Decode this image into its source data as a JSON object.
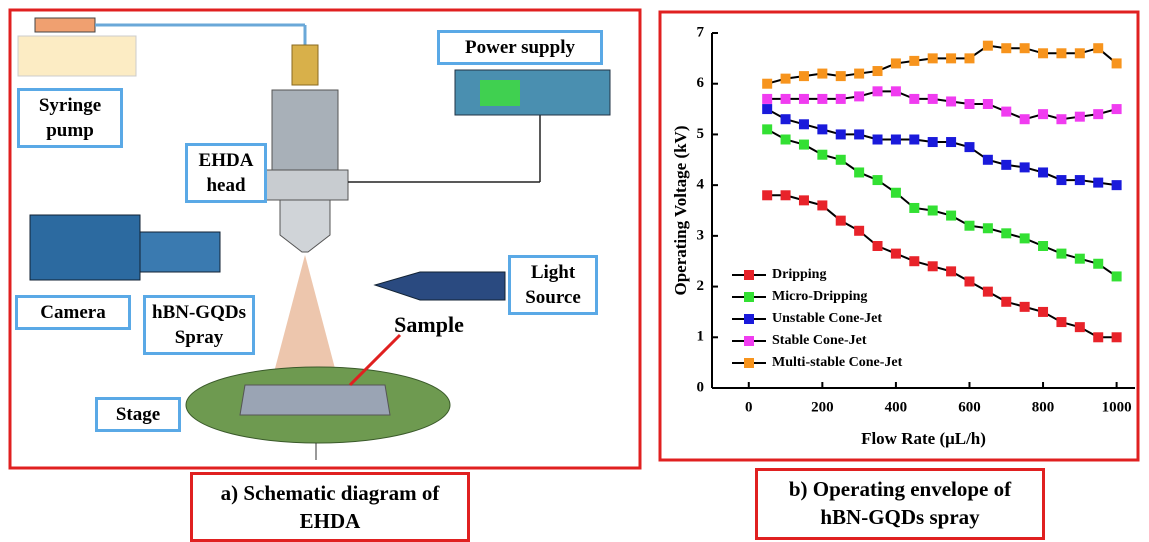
{
  "diagram": {
    "labels": {
      "syringe_pump": "Syringe pump",
      "ehda_head": "EHDA head",
      "power_supply": "Power supply",
      "camera": "Camera",
      "spray": "hBN-GQDs Spray",
      "light_source": "Light Source",
      "sample": "Sample",
      "stage": "Stage"
    },
    "caption": "a) Schematic diagram of EHDA"
  },
  "chart_data": {
    "type": "line",
    "caption": "b) Operating envelope of hBN-GQDs spray",
    "x_label": "Flow Rate (μL/h)",
    "y_label": "Operating Voltage (kV)",
    "x": [
      50,
      100,
      150,
      200,
      250,
      300,
      350,
      400,
      450,
      500,
      550,
      600,
      650,
      700,
      750,
      800,
      850,
      900,
      950,
      1000
    ],
    "series": [
      {
        "name": "Dripping",
        "color": "#e8232a",
        "values": [
          3.8,
          3.8,
          3.7,
          3.6,
          3.3,
          3.1,
          2.8,
          2.65,
          2.5,
          2.4,
          2.3,
          2.1,
          1.9,
          1.7,
          1.6,
          1.5,
          1.3,
          1.2,
          1.0,
          1.0
        ]
      },
      {
        "name": "Micro-Dripping",
        "color": "#33e033",
        "values": [
          5.1,
          4.9,
          4.8,
          4.6,
          4.5,
          4.25,
          4.1,
          3.85,
          3.55,
          3.5,
          3.4,
          3.2,
          3.15,
          3.05,
          2.95,
          2.8,
          2.65,
          2.55,
          2.45,
          2.2
        ]
      },
      {
        "name": "Unstable Cone-Jet",
        "color": "#1a1adb",
        "values": [
          5.5,
          5.3,
          5.2,
          5.1,
          5.0,
          5.0,
          4.9,
          4.9,
          4.9,
          4.85,
          4.85,
          4.75,
          4.5,
          4.4,
          4.35,
          4.25,
          4.1,
          4.1,
          4.05,
          4.0
        ]
      },
      {
        "name": "Stable Cone-Jet",
        "color": "#f03cf0",
        "values": [
          5.7,
          5.7,
          5.7,
          5.7,
          5.7,
          5.75,
          5.85,
          5.85,
          5.7,
          5.7,
          5.65,
          5.6,
          5.6,
          5.45,
          5.3,
          5.4,
          5.3,
          5.35,
          5.4,
          5.5
        ]
      },
      {
        "name": "Multi-stable Cone-Jet",
        "color": "#f7941d",
        "values": [
          6.0,
          6.1,
          6.15,
          6.2,
          6.15,
          6.2,
          6.25,
          6.4,
          6.45,
          6.5,
          6.5,
          6.5,
          6.75,
          6.7,
          6.7,
          6.6,
          6.6,
          6.6,
          6.7,
          6.4
        ]
      }
    ],
    "line_color": "#000000",
    "xlim": [
      -100,
      1050
    ],
    "xticks": [
      0,
      200,
      400,
      600,
      800,
      1000
    ],
    "ylim": [
      0,
      7
    ],
    "yticks": [
      0,
      1,
      2,
      3,
      4,
      5,
      6,
      7
    ],
    "legend": "lower left"
  }
}
